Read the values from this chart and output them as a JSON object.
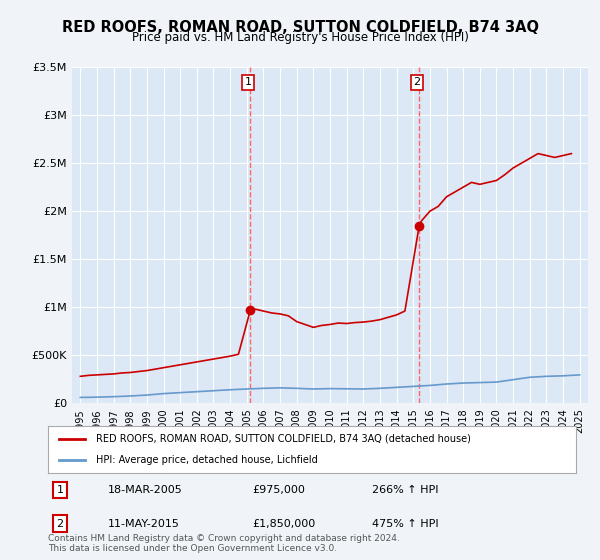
{
  "title": "RED ROOFS, ROMAN ROAD, SUTTON COLDFIELD, B74 3AQ",
  "subtitle": "Price paid vs. HM Land Registry's House Price Index (HPI)",
  "title_fontsize": 11,
  "subtitle_fontsize": 9,
  "background_color": "#f0f4f8",
  "plot_bg_color": "#dce8f5",
  "ylim": [
    0,
    3500000
  ],
  "xlim_start": 1995,
  "xlim_end": 2025.5,
  "yticks": [
    0,
    500000,
    1000000,
    1500000,
    2000000,
    2500000,
    3000000,
    3500000
  ],
  "ytick_labels": [
    "£0",
    "£500K",
    "£1M",
    "£1.5M",
    "£2M",
    "£2.5M",
    "£3M",
    "£3.5M"
  ],
  "xticks": [
    1995,
    1996,
    1997,
    1998,
    1999,
    2000,
    2001,
    2002,
    2003,
    2004,
    2005,
    2006,
    2007,
    2008,
    2009,
    2010,
    2011,
    2012,
    2013,
    2014,
    2015,
    2016,
    2017,
    2018,
    2019,
    2020,
    2021,
    2022,
    2023,
    2024,
    2025
  ],
  "red_line_color": "#cc0000",
  "blue_line_color": "#6699cc",
  "red_x": [
    1995,
    1995.5,
    1996,
    1996.5,
    1997,
    1997.5,
    1998,
    1998.5,
    1999,
    1999.5,
    2000,
    2000.5,
    2001,
    2001.5,
    2002,
    2002.5,
    2003,
    2003.5,
    2004,
    2004.5,
    2005.22,
    2005.5,
    2006,
    2006.5,
    2007,
    2007.5,
    2008,
    2008.5,
    2009,
    2009.5,
    2010,
    2010.5,
    2011,
    2011.5,
    2012,
    2012.5,
    2013,
    2013.5,
    2014,
    2014.5,
    2015.36,
    2015.5,
    2016,
    2016.5,
    2017,
    2017.5,
    2018,
    2018.5,
    2019,
    2019.5,
    2020,
    2020.5,
    2021,
    2021.5,
    2022,
    2022.5,
    2023,
    2023.5,
    2024,
    2024.5
  ],
  "red_y": [
    280000,
    290000,
    295000,
    300000,
    305000,
    315000,
    320000,
    330000,
    340000,
    355000,
    370000,
    385000,
    400000,
    415000,
    430000,
    445000,
    460000,
    475000,
    490000,
    510000,
    975000,
    980000,
    960000,
    940000,
    930000,
    910000,
    850000,
    820000,
    790000,
    810000,
    820000,
    835000,
    830000,
    840000,
    845000,
    855000,
    870000,
    895000,
    920000,
    960000,
    1850000,
    1900000,
    2000000,
    2050000,
    2150000,
    2200000,
    2250000,
    2300000,
    2280000,
    2300000,
    2320000,
    2380000,
    2450000,
    2500000,
    2550000,
    2600000,
    2580000,
    2560000,
    2580000,
    2600000
  ],
  "blue_x": [
    1995,
    1996,
    1997,
    1998,
    1999,
    2000,
    2001,
    2002,
    2003,
    2004,
    2005,
    2006,
    2007,
    2008,
    2009,
    2010,
    2011,
    2012,
    2013,
    2014,
    2015,
    2016,
    2017,
    2018,
    2019,
    2020,
    2021,
    2022,
    2023,
    2024,
    2025
  ],
  "blue_y": [
    60000,
    63000,
    68000,
    75000,
    85000,
    100000,
    110000,
    120000,
    130000,
    140000,
    148000,
    155000,
    160000,
    155000,
    148000,
    152000,
    150000,
    148000,
    155000,
    165000,
    175000,
    185000,
    200000,
    210000,
    215000,
    220000,
    245000,
    270000,
    280000,
    285000,
    295000
  ],
  "point1_x": 2005.22,
  "point1_y": 975000,
  "point1_label": "1",
  "point1_date": "18-MAR-2005",
  "point1_price": "£975,000",
  "point1_hpi": "266% ↑ HPI",
  "point2_x": 2015.36,
  "point2_y": 1850000,
  "point2_label": "2",
  "point2_date": "11-MAY-2015",
  "point2_price": "£1,850,000",
  "point2_hpi": "475% ↑ HPI",
  "legend_line1": "RED ROOFS, ROMAN ROAD, SUTTON COLDFIELD, B74 3AQ (detached house)",
  "legend_line2": "HPI: Average price, detached house, Lichfield",
  "footer": "Contains HM Land Registry data © Crown copyright and database right 2024.\nThis data is licensed under the Open Government Licence v3.0.",
  "grid_color": "#ffffff",
  "vline_color": "#ff6666"
}
